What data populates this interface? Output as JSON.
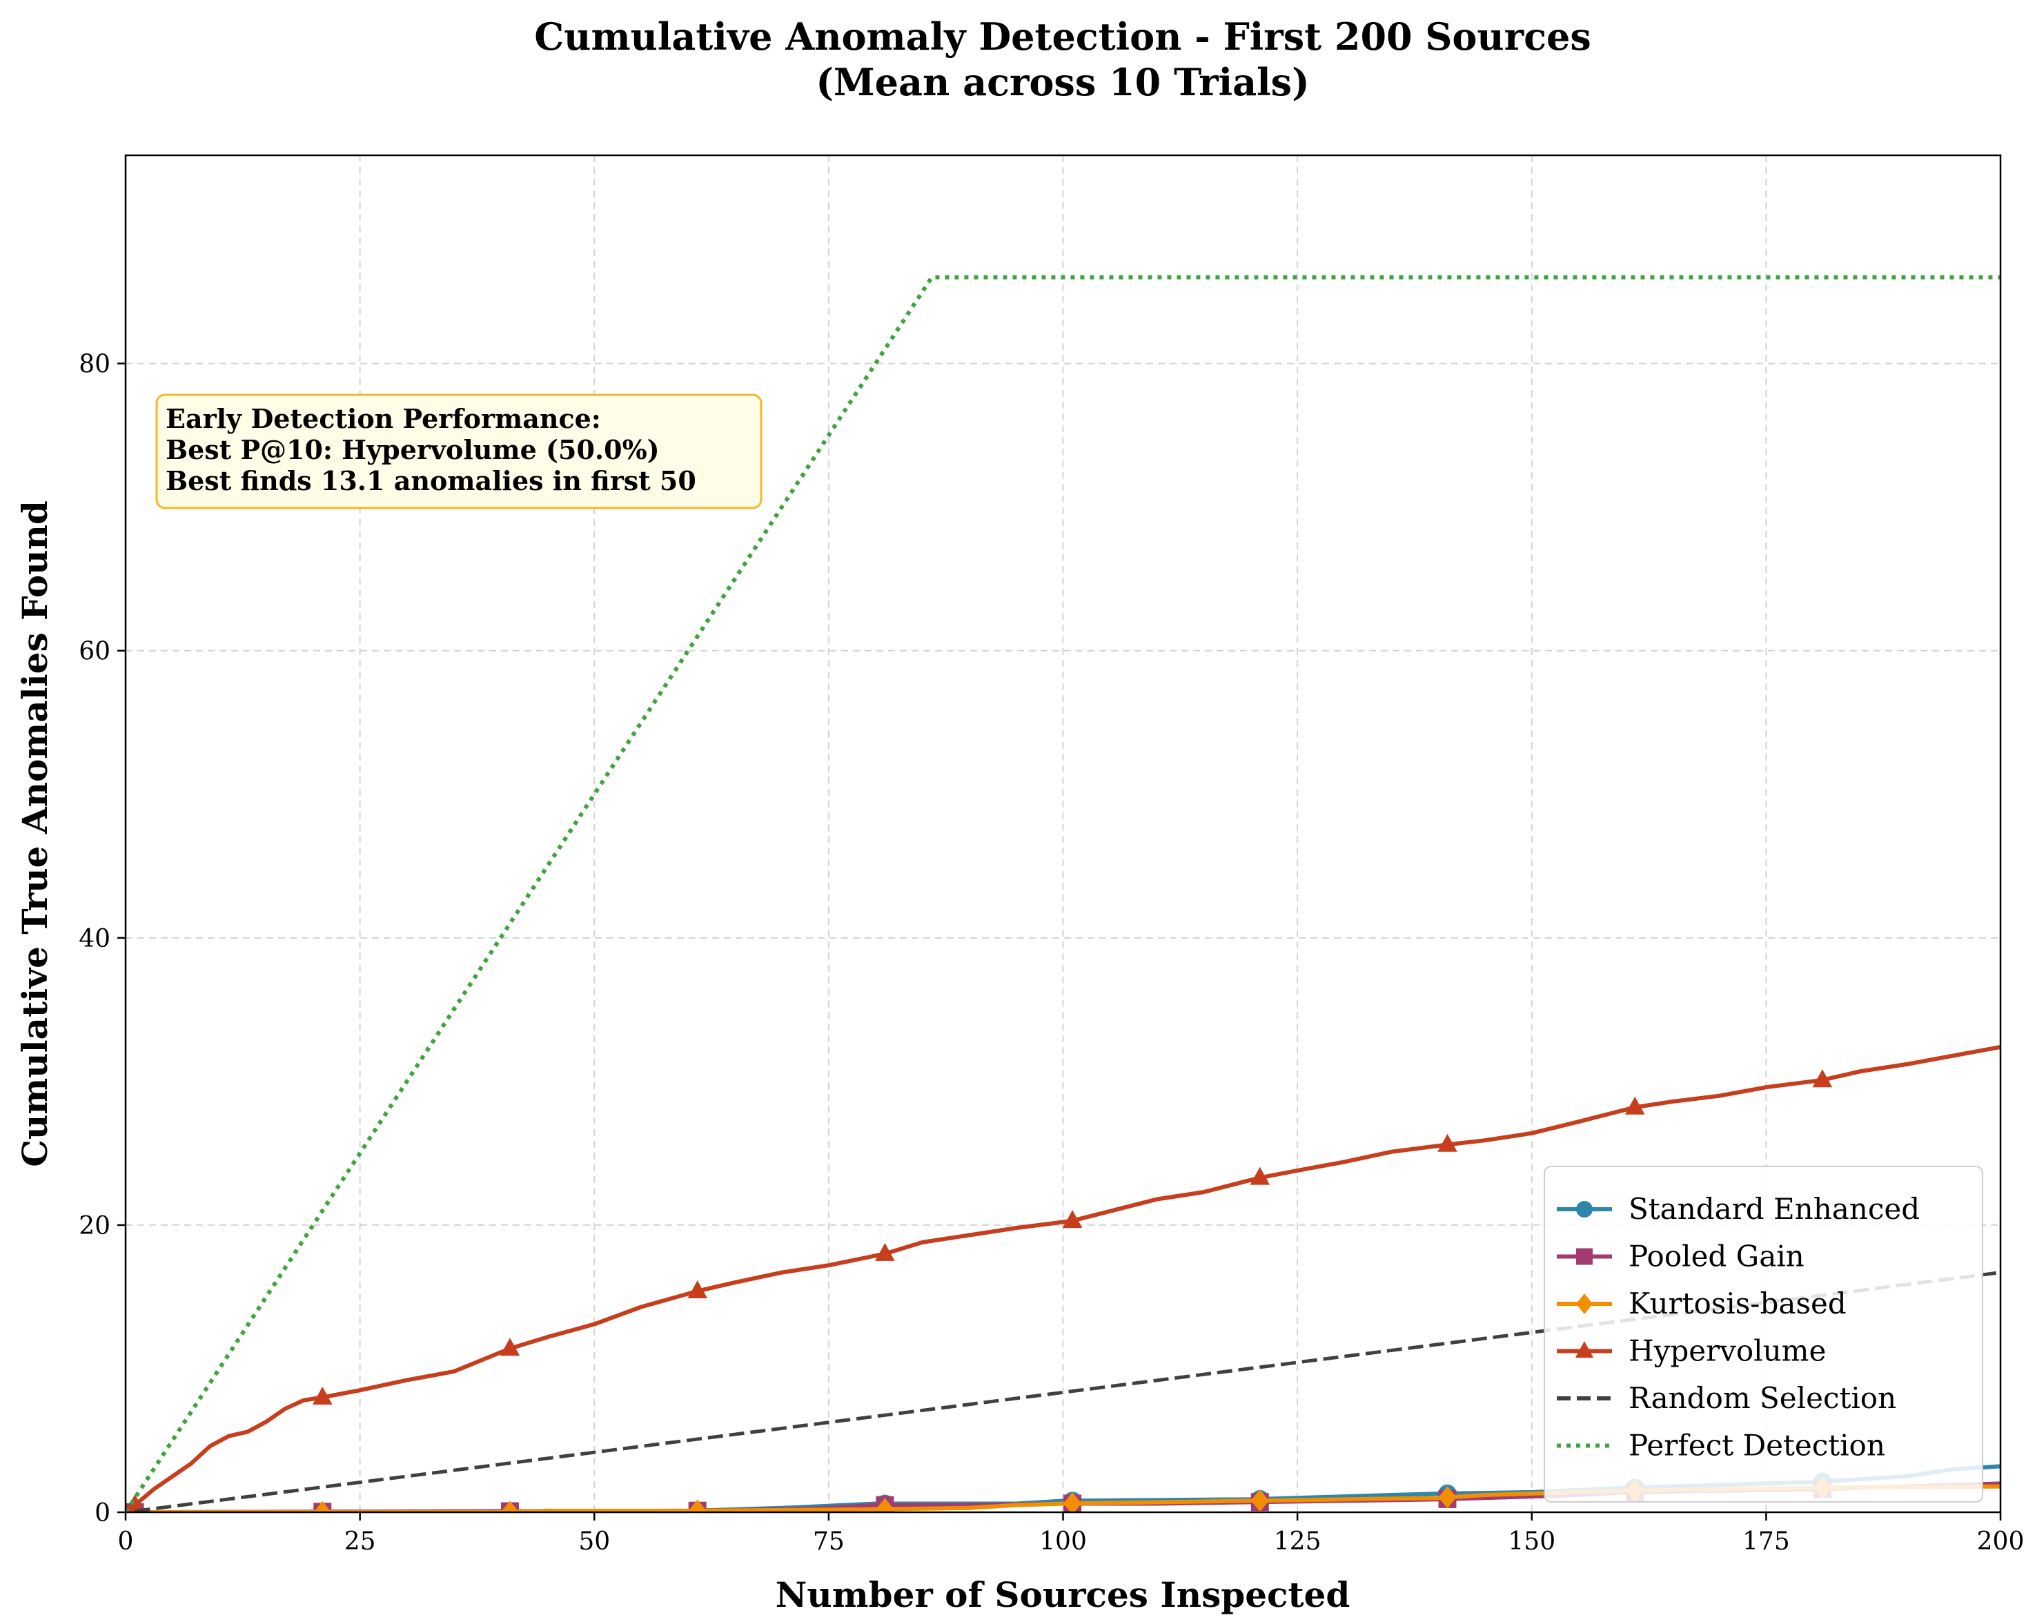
{
  "chart_data": {
    "type": "line",
    "title_lines": [
      "Cumulative Anomaly Detection - First 200 Sources",
      "(Mean across 10 Trials)"
    ],
    "xlabel": "Number of Sources Inspected",
    "ylabel": "Cumulative True Anomalies Found",
    "xlim": [
      0,
      200
    ],
    "ylim": [
      0,
      94.5
    ],
    "xticks": [
      0,
      25,
      50,
      75,
      100,
      125,
      150,
      175,
      200
    ],
    "yticks": [
      0,
      20,
      40,
      60,
      80
    ],
    "grid": true,
    "legend_position": "lower-right",
    "annotation": {
      "lines": [
        "Early Detection Performance:",
        "Best P@10: Hypervolume (50.0%)",
        "Best finds 13.1 anomalies in first 50"
      ]
    },
    "series": [
      {
        "name": "Standard Enhanced",
        "color": "#2e86ab",
        "style": "solid",
        "marker": "circle",
        "x": [
          1,
          60,
          70,
          80,
          95,
          100,
          120,
          130,
          140,
          150,
          160,
          170,
          180,
          190,
          195,
          200
        ],
        "y": [
          0,
          0.1,
          0.3,
          0.6,
          0.6,
          0.8,
          0.9,
          1.1,
          1.3,
          1.4,
          1.7,
          1.9,
          2.1,
          2.5,
          3.0,
          3.2
        ]
      },
      {
        "name": "Pooled Gain",
        "color": "#a23b72",
        "style": "solid",
        "marker": "square",
        "x": [
          1,
          60,
          70,
          75,
          80,
          90,
          100,
          110,
          120,
          130,
          140,
          150,
          155,
          160,
          170,
          180,
          190,
          200
        ],
        "y": [
          0,
          0.1,
          0.2,
          0.3,
          0.5,
          0.5,
          0.6,
          0.6,
          0.7,
          0.8,
          0.9,
          1.1,
          1.2,
          1.4,
          1.5,
          1.6,
          1.8,
          2.0
        ]
      },
      {
        "name": "Kurtosis-based",
        "color": "#f18f01",
        "style": "solid",
        "marker": "diamond",
        "x": [
          1,
          40,
          45,
          60,
          80,
          90,
          95,
          100,
          120,
          140,
          145,
          160,
          180,
          200
        ],
        "y": [
          0,
          0,
          0.1,
          0.1,
          0.2,
          0.3,
          0.5,
          0.6,
          0.8,
          1.0,
          1.2,
          1.5,
          1.7,
          1.8
        ]
      },
      {
        "name": "Hypervolume",
        "color": "#c73e1d",
        "style": "solid",
        "marker": "triangle",
        "x": [
          1,
          3,
          5,
          7,
          9,
          11,
          13,
          15,
          17,
          19,
          21,
          25,
          30,
          35,
          38,
          41,
          45,
          50,
          55,
          61,
          65,
          70,
          75,
          81,
          85,
          90,
          95,
          101,
          110,
          115,
          121,
          125,
          130,
          135,
          141,
          145,
          150,
          155,
          161,
          165,
          170,
          175,
          181,
          185,
          190,
          195,
          200
        ],
        "y": [
          0.5,
          1.6,
          2.5,
          3.4,
          4.6,
          5.3,
          5.6,
          6.3,
          7.2,
          7.8,
          8.0,
          8.5,
          9.2,
          9.8,
          10.6,
          11.4,
          12.2,
          13.1,
          14.3,
          15.4,
          16.0,
          16.7,
          17.2,
          18.0,
          18.8,
          19.3,
          19.8,
          20.3,
          21.8,
          22.3,
          23.3,
          23.8,
          24.4,
          25.1,
          25.6,
          25.9,
          26.4,
          27.2,
          28.2,
          28.6,
          29.0,
          29.6,
          30.1,
          30.7,
          31.2,
          31.8,
          32.4
        ]
      },
      {
        "name": "Random Selection",
        "color": "#404040",
        "style": "dashed",
        "marker": "none",
        "x": [
          1,
          200
        ],
        "y": [
          0.08,
          16.7
        ]
      },
      {
        "name": "Perfect Detection",
        "color": "#3fa33f",
        "style": "dotted",
        "marker": "none",
        "x": [
          0,
          86,
          200
        ],
        "y": [
          0,
          86,
          86
        ]
      }
    ]
  }
}
